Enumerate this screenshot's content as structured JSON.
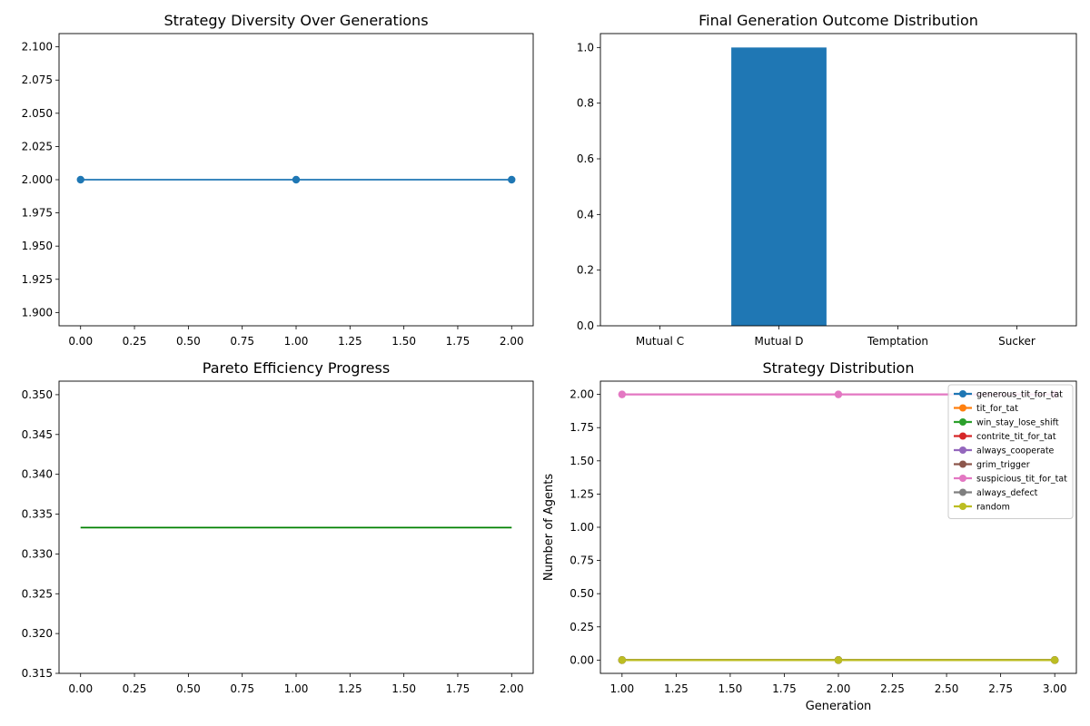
{
  "chart_data": [
    {
      "type": "line",
      "title": "Strategy Diversity Over Generations",
      "xlabel": "",
      "ylabel": "",
      "xlim": [
        -0.1,
        2.1
      ],
      "ylim": [
        1.89,
        2.11
      ],
      "xticks": [
        0,
        0.25,
        0.5,
        0.75,
        1,
        1.25,
        1.5,
        1.75,
        2
      ],
      "xticklabels": [
        "0.00",
        "0.25",
        "0.50",
        "0.75",
        "1.00",
        "1.25",
        "1.50",
        "1.75",
        "2.00"
      ],
      "yticks": [
        1.9,
        1.925,
        1.95,
        1.975,
        2.0,
        2.025,
        2.05,
        2.075,
        2.1
      ],
      "yticklabels": [
        "1.900",
        "1.925",
        "1.950",
        "1.975",
        "2.000",
        "2.025",
        "2.050",
        "2.075",
        "2.100"
      ],
      "series": [
        {
          "x": [
            0,
            1,
            2
          ],
          "y": [
            2,
            2,
            2
          ],
          "color": "#1f77b4",
          "marker": true
        }
      ]
    },
    {
      "type": "bar",
      "title": "Final Generation Outcome Distribution",
      "xlabel": "",
      "ylabel": "",
      "categories": [
        "Mutual C",
        "Mutual D",
        "Temptation",
        "Sucker"
      ],
      "values": [
        0,
        1.0,
        0,
        0
      ],
      "ylim": [
        0,
        1.05
      ],
      "yticks": [
        0,
        0.2,
        0.4,
        0.6,
        0.8,
        1.0
      ],
      "yticklabels": [
        "0.0",
        "0.2",
        "0.4",
        "0.6",
        "0.8",
        "1.0"
      ],
      "color": "#1f77b4"
    },
    {
      "type": "line",
      "title": "Pareto Efficiency Progress",
      "xlabel": "",
      "ylabel": "",
      "xlim": [
        -0.1,
        2.1
      ],
      "ylim": [
        0.315,
        0.3517
      ],
      "xticks": [
        0,
        0.25,
        0.5,
        0.75,
        1,
        1.25,
        1.5,
        1.75,
        2
      ],
      "xticklabels": [
        "0.00",
        "0.25",
        "0.50",
        "0.75",
        "1.00",
        "1.25",
        "1.50",
        "1.75",
        "2.00"
      ],
      "yticks": [
        0.315,
        0.32,
        0.325,
        0.33,
        0.335,
        0.34,
        0.345,
        0.35
      ],
      "yticklabels": [
        "0.315",
        "0.320",
        "0.325",
        "0.330",
        "0.335",
        "0.340",
        "0.345",
        "0.350"
      ],
      "series": [
        {
          "x": [
            0,
            1,
            2
          ],
          "y": [
            0.3333,
            0.3333,
            0.3333
          ],
          "color": "#008000",
          "marker": false
        }
      ]
    },
    {
      "type": "line",
      "title": "Strategy Distribution",
      "xlabel": "Generation",
      "ylabel": "Number of Agents",
      "xlim": [
        0.9,
        3.1
      ],
      "ylim": [
        -0.1,
        2.1
      ],
      "xticks": [
        1,
        1.25,
        1.5,
        1.75,
        2,
        2.25,
        2.5,
        2.75,
        3
      ],
      "xticklabels": [
        "1.00",
        "1.25",
        "1.50",
        "1.75",
        "2.00",
        "2.25",
        "2.50",
        "2.75",
        "3.00"
      ],
      "yticks": [
        0,
        0.25,
        0.5,
        0.75,
        1,
        1.25,
        1.5,
        1.75,
        2
      ],
      "yticklabels": [
        "0.00",
        "0.25",
        "0.50",
        "0.75",
        "1.00",
        "1.25",
        "1.50",
        "1.75",
        "2.00"
      ],
      "legend_position": "upper right",
      "series": [
        {
          "name": "generous_tit_for_tat",
          "x": [
            1,
            2,
            3
          ],
          "y": [
            0,
            0,
            0
          ],
          "color": "#1f77b4",
          "marker": true
        },
        {
          "name": "tit_for_tat",
          "x": [
            1,
            2,
            3
          ],
          "y": [
            0,
            0,
            0
          ],
          "color": "#ff7f0e",
          "marker": true
        },
        {
          "name": "win_stay_lose_shift",
          "x": [
            1,
            2,
            3
          ],
          "y": [
            0,
            0,
            0
          ],
          "color": "#2ca02c",
          "marker": true
        },
        {
          "name": "contrite_tit_for_tat",
          "x": [
            1,
            2,
            3
          ],
          "y": [
            0,
            0,
            0
          ],
          "color": "#d62728",
          "marker": true
        },
        {
          "name": "always_cooperate",
          "x": [
            1,
            2,
            3
          ],
          "y": [
            0,
            0,
            0
          ],
          "color": "#9467bd",
          "marker": true
        },
        {
          "name": "grim_trigger",
          "x": [
            1,
            2,
            3
          ],
          "y": [
            0,
            0,
            0
          ],
          "color": "#8c564b",
          "marker": true
        },
        {
          "name": "suspicious_tit_for_tat",
          "x": [
            1,
            2,
            3
          ],
          "y": [
            2,
            2,
            2
          ],
          "color": "#e377c2",
          "marker": true
        },
        {
          "name": "always_defect",
          "x": [
            1,
            2,
            3
          ],
          "y": [
            0,
            0,
            0
          ],
          "color": "#7f7f7f",
          "marker": true
        },
        {
          "name": "random",
          "x": [
            1,
            2,
            3
          ],
          "y": [
            0,
            0,
            0
          ],
          "color": "#bcbd22",
          "marker": true
        }
      ]
    }
  ]
}
